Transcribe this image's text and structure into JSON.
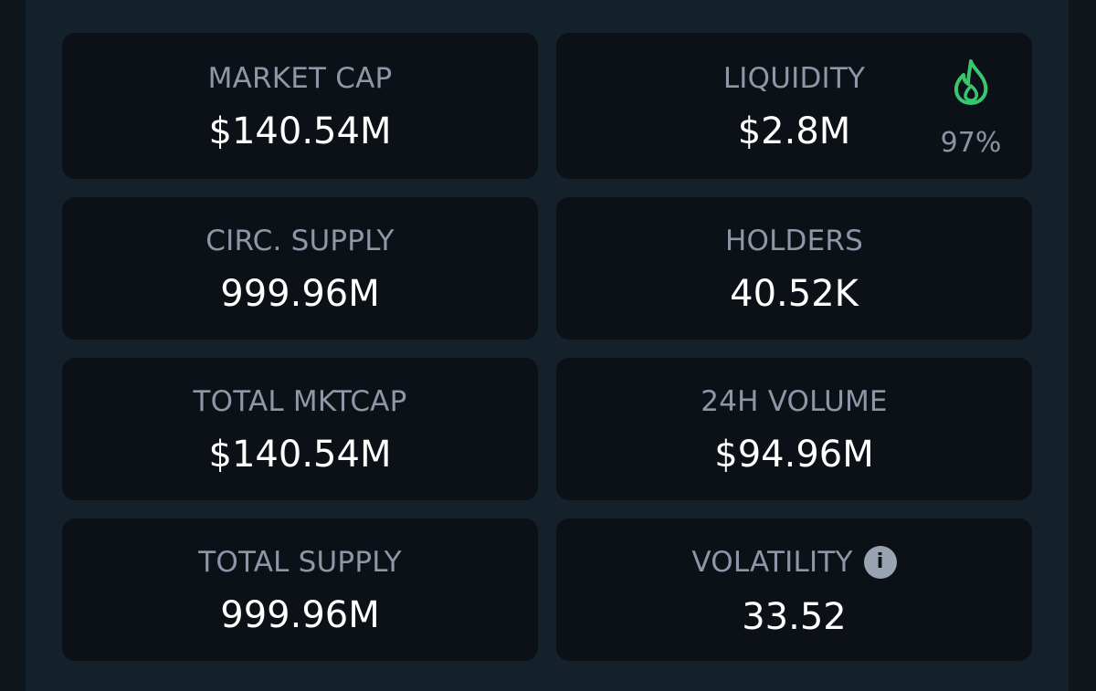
{
  "stats": {
    "market_cap": {
      "label": "MARKET CAP",
      "value": "$140.54M"
    },
    "liquidity": {
      "label": "LIQUIDITY",
      "value": "$2.8M",
      "badge": "97%",
      "badge_icon": "fire-icon",
      "badge_color": "#39c66f"
    },
    "circ_supply": {
      "label": "CIRC. SUPPLY",
      "value": "999.96M"
    },
    "holders": {
      "label": "HOLDERS",
      "value": "40.52K"
    },
    "total_mktcap": {
      "label": "TOTAL MKTCAP",
      "value": "$140.54M"
    },
    "volume_24h": {
      "label": "24H VOLUME",
      "value": "$94.96M"
    },
    "total_supply": {
      "label": "TOTAL SUPPLY",
      "value": "999.96M"
    },
    "volatility": {
      "label": "VOLATILITY",
      "value": "33.52",
      "info_icon": "info-icon"
    }
  },
  "colors": {
    "page_background": "#0e161c",
    "panel_background": "#15212a",
    "card_background": "#0b1116",
    "label": "#8e97a8",
    "value": "#ffffff",
    "accent_green": "#39c66f"
  }
}
